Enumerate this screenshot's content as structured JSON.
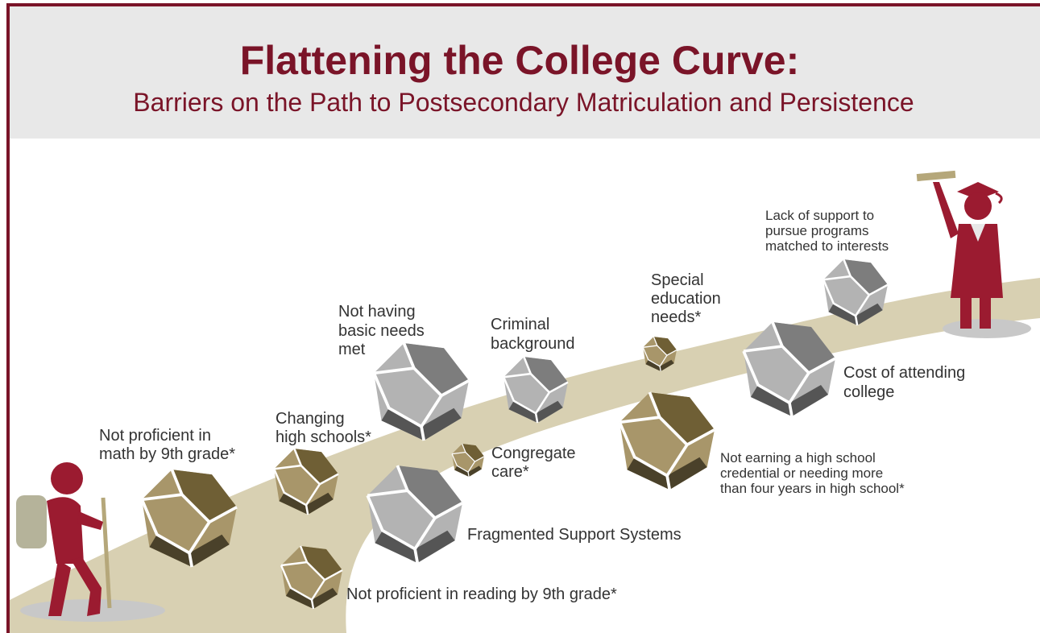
{
  "header": {
    "title": "Flattening the College Curve:",
    "subtitle": "Barriers on the Path to Postsecondary Matriculation and Persistence"
  },
  "barriers": [
    {
      "lines": [
        "Not proficient in",
        "math by 9th grade*"
      ]
    },
    {
      "lines": [
        "Changing",
        "high schools*"
      ]
    },
    {
      "lines": [
        "Not having",
        "basic needs",
        "met"
      ]
    },
    {
      "lines": [
        "Criminal",
        "background"
      ]
    },
    {
      "lines": [
        "Congregate",
        "care*"
      ]
    },
    {
      "lines": [
        "Special",
        "education",
        "needs*"
      ]
    },
    {
      "lines": [
        "Lack of support to",
        "pursue programs",
        "matched to interests"
      ]
    },
    {
      "lines": [
        "Cost of attending",
        "college"
      ]
    },
    {
      "lines": [
        "Not earning a high school",
        "credential or needing more",
        "than four years in high school*"
      ]
    },
    {
      "lines": [
        "Fragmented Support Systems"
      ]
    },
    {
      "lines": [
        "Not proficient in reading by 9th grade*"
      ]
    }
  ]
}
